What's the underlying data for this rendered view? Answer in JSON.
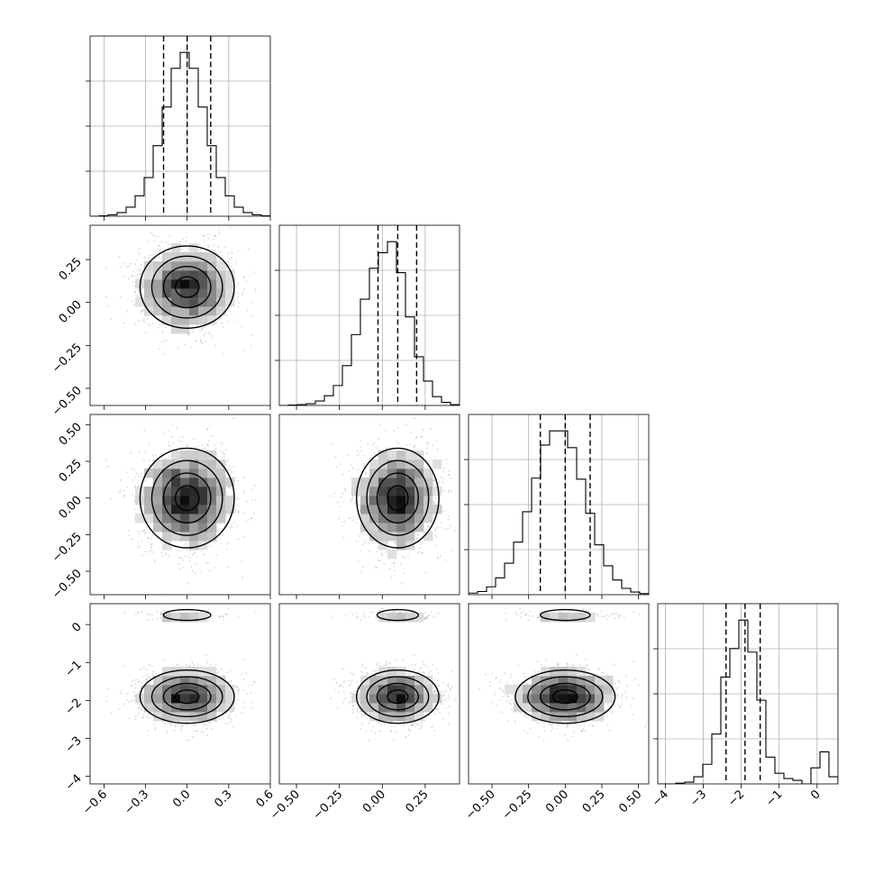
{
  "chart_data": {
    "type": "corner",
    "title": "",
    "n_params": 4,
    "parameters": [
      {
        "label": "",
        "range": [
          -0.7,
          0.6
        ],
        "ticks": [
          -0.6,
          -0.3,
          0.0,
          0.3,
          0.6
        ],
        "tick_labels": [
          "−0.6",
          "−0.3",
          "0.0",
          "0.3",
          "0.6"
        ],
        "quantiles": [
          -0.17,
          0.0,
          0.17
        ],
        "samples_mean": 0.0,
        "samples_std": 0.17
      },
      {
        "label": "",
        "range": [
          -0.6,
          0.45
        ],
        "ticks": [
          -0.5,
          -0.25,
          0.0,
          0.25
        ],
        "tick_labels": [
          "−0.50",
          "−0.25",
          "0.00",
          "0.25"
        ],
        "quantiles": [
          -0.025,
          0.09,
          0.2
        ],
        "samples_mean": 0.09,
        "samples_std": 0.12
      },
      {
        "label": "",
        "range": [
          -0.66,
          0.57
        ],
        "ticks": [
          -0.5,
          -0.25,
          0.0,
          0.25,
          0.5
        ],
        "tick_labels": [
          "−0.50",
          "−0.25",
          "0.00",
          "0.25",
          "0.50"
        ],
        "quantiles": [
          -0.17,
          0.0,
          0.17
        ],
        "samples_mean": 0.0,
        "samples_std": 0.17
      },
      {
        "label": "",
        "range": [
          -4.2,
          0.55
        ],
        "ticks": [
          -4,
          -3,
          -2,
          -1,
          0
        ],
        "tick_labels": [
          "−4",
          "−3",
          "−2",
          "−1",
          "0"
        ],
        "quantiles": [
          -2.4,
          -1.9,
          -1.5
        ],
        "samples_mean": -1.9,
        "samples_std": 0.35,
        "secondary_mode": 0.25
      }
    ],
    "histograms": [
      {
        "param": 0,
        "bin_edges": [
          -0.7,
          -0.635,
          -0.57,
          -0.505,
          -0.44,
          -0.375,
          -0.31,
          -0.245,
          -0.18,
          -0.115,
          -0.05,
          0.015,
          0.08,
          0.145,
          0.21,
          0.275,
          0.34,
          0.405,
          0.47,
          0.535,
          0.6
        ],
        "counts": [
          0,
          1,
          3,
          8,
          20,
          45,
          85,
          155,
          240,
          325,
          360,
          325,
          240,
          155,
          85,
          45,
          20,
          8,
          3,
          1
        ]
      },
      {
        "param": 1,
        "bin_edges": [
          -0.6,
          -0.5475,
          -0.495,
          -0.4425,
          -0.39,
          -0.3375,
          -0.285,
          -0.2325,
          -0.18,
          -0.1275,
          -0.075,
          -0.0225,
          0.03,
          0.0825,
          0.135,
          0.1875,
          0.24,
          0.2925,
          0.345,
          0.3975,
          0.45
        ],
        "counts": [
          0,
          1,
          2,
          4,
          10,
          22,
          45,
          90,
          160,
          240,
          310,
          345,
          370,
          300,
          200,
          110,
          55,
          20,
          7,
          2
        ]
      },
      {
        "param": 2,
        "bin_edges": [
          -0.66,
          -0.5985,
          -0.537,
          -0.4755,
          -0.414,
          -0.3525,
          -0.291,
          -0.2295,
          -0.168,
          -0.1065,
          -0.045,
          0.0165,
          0.078,
          0.1395,
          0.201,
          0.2625,
          0.324,
          0.3855,
          0.447,
          0.5085,
          0.57
        ],
        "counts": [
          3,
          6,
          15,
          32,
          60,
          100,
          158,
          222,
          285,
          312,
          312,
          280,
          220,
          155,
          95,
          55,
          28,
          12,
          5,
          2
        ]
      },
      {
        "param": 3,
        "bin_edges": [
          -4.2,
          -3.9625,
          -3.725,
          -3.4875,
          -3.25,
          -3.0125,
          -2.775,
          -2.5375,
          -2.3,
          -2.0625,
          -1.825,
          -1.5875,
          -1.35,
          -1.1125,
          -0.875,
          -0.6375,
          -0.4,
          -0.1625,
          0.075,
          0.3125,
          0.55
        ],
        "counts": [
          0,
          0,
          2,
          5,
          20,
          55,
          140,
          300,
          380,
          460,
          370,
          235,
          75,
          30,
          15,
          10,
          0,
          45,
          90,
          20
        ]
      }
    ],
    "pairs": [
      {
        "x_param": 0,
        "y_param": 1
      },
      {
        "x_param": 0,
        "y_param": 2
      },
      {
        "x_param": 1,
        "y_param": 2
      },
      {
        "x_param": 0,
        "y_param": 3
      },
      {
        "x_param": 1,
        "y_param": 3
      },
      {
        "x_param": 2,
        "y_param": 3
      }
    ],
    "grid": true,
    "legend": "none"
  }
}
